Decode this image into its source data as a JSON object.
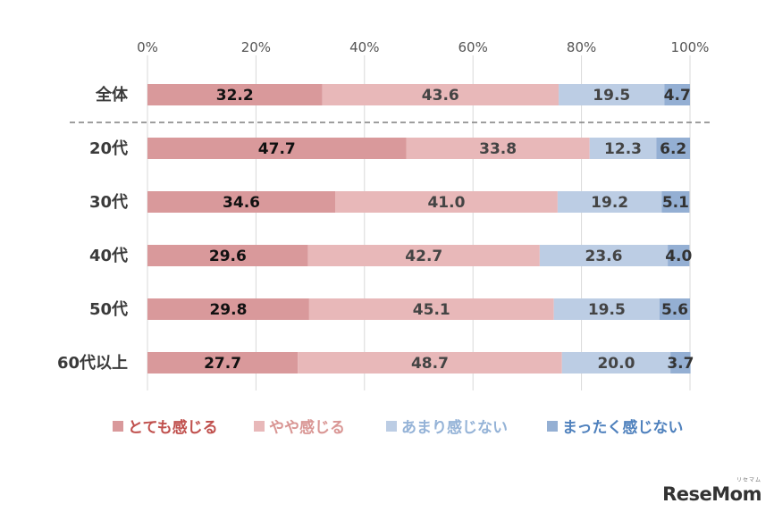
{
  "chart_data": {
    "type": "bar",
    "orientation": "horizontal",
    "stacked": true,
    "categories": [
      "全体",
      "20代",
      "30代",
      "40代",
      "50代",
      "60代以上"
    ],
    "series": [
      {
        "name": "とても感じる",
        "color": "#d9999b",
        "label_color": "#111111",
        "values": [
          32.2,
          47.7,
          34.6,
          29.6,
          29.8,
          27.7
        ]
      },
      {
        "name": "やや感じる",
        "color": "#e8b8b9",
        "label_color": "#444444",
        "values": [
          43.6,
          33.8,
          41.0,
          42.7,
          45.1,
          48.7
        ]
      },
      {
        "name": "あまり感じない",
        "color": "#bccde4",
        "label_color": "#444444",
        "values": [
          19.5,
          12.3,
          19.2,
          23.6,
          19.5,
          20.0
        ]
      },
      {
        "name": "まったく感じない",
        "color": "#94afd3",
        "label_color": "#333333",
        "values": [
          4.7,
          6.2,
          5.1,
          4.0,
          5.6,
          3.7
        ]
      }
    ],
    "value_labels": [
      [
        "32.2",
        "43.6",
        "19.5",
        "4.7"
      ],
      [
        "47.7",
        "33.8",
        "12.3",
        "6.2"
      ],
      [
        "34.6",
        "41.0",
        "19.2",
        "5.1"
      ],
      [
        "29.6",
        "42.7",
        "23.6",
        "4.0"
      ],
      [
        "29.8",
        "45.1",
        "19.5",
        "5.6"
      ],
      [
        "27.7",
        "48.7",
        "20.0",
        "3.7"
      ]
    ],
    "xaxis": {
      "ticks": [
        "0%",
        "20%",
        "40%",
        "60%",
        "80%",
        "100%"
      ],
      "tick_values": [
        0,
        20,
        40,
        60,
        80,
        100
      ],
      "xlim": [
        0,
        100
      ],
      "position": "top"
    },
    "grid": true,
    "separator_after_category": "全体",
    "legend": {
      "placement": "bottom",
      "entries": [
        "とても感じる",
        "やや感じる",
        "あまり感じない",
        "まったく感じない"
      ],
      "text_colors": [
        "#c0504d",
        "#d99694",
        "#95b3d7",
        "#4f81bd"
      ]
    }
  },
  "watermark": {
    "text": "ReseMom",
    "tagline": "リセマム"
  }
}
